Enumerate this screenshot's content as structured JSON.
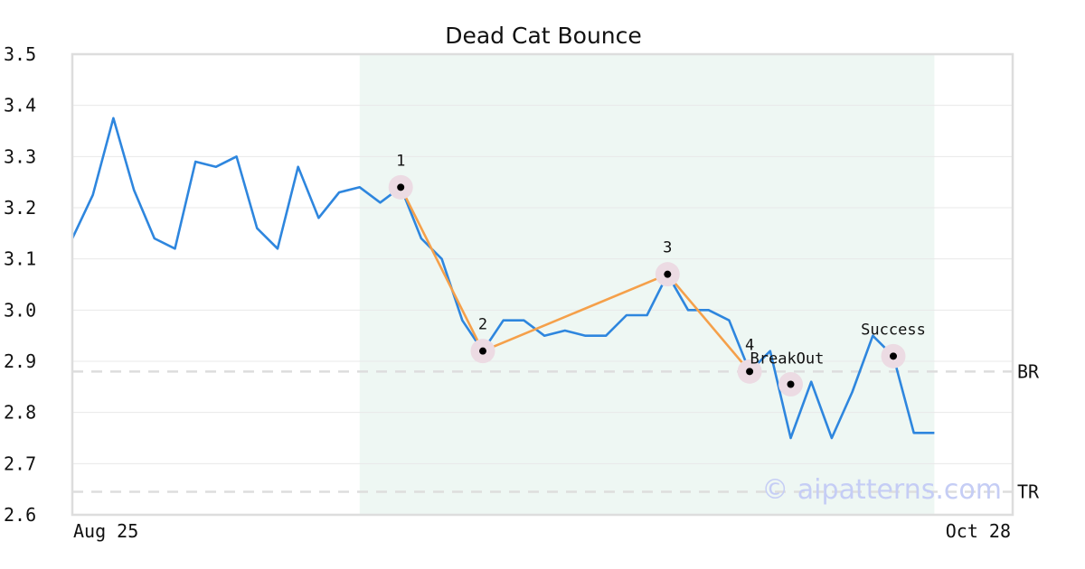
{
  "chart_data": {
    "type": "line",
    "title": "Dead Cat Bounce",
    "ylim": [
      2.6,
      3.5
    ],
    "yticks": [
      "3.5",
      "3.4",
      "3.3",
      "3.2",
      "3.1",
      "3.0",
      "2.9",
      "2.8",
      "2.7",
      "2.6"
    ],
    "xtick_labels": [
      "Aug 25",
      "Oct 28"
    ],
    "grid": true,
    "series": [
      {
        "values": [
          3.14,
          3.225,
          3.375,
          3.235,
          3.14,
          3.12,
          3.29,
          3.28,
          3.3,
          3.16,
          3.12,
          3.28,
          3.18,
          3.23,
          3.24,
          3.21,
          3.24,
          3.14,
          3.1,
          2.98,
          2.92,
          2.98,
          2.98,
          2.95,
          2.96,
          2.95,
          2.95,
          2.99,
          2.99,
          3.07,
          3.0,
          3.0,
          2.98,
          2.88,
          2.92,
          2.75,
          2.86,
          2.75,
          2.84,
          2.95,
          2.91,
          2.76,
          2.76
        ]
      }
    ],
    "pattern_shading": {
      "from_index": 14,
      "to_index": 42
    },
    "pattern_points": [
      {
        "label": "1",
        "index": 16,
        "value": 3.24
      },
      {
        "label": "2",
        "index": 20,
        "value": 2.92
      },
      {
        "label": "3",
        "index": 29,
        "value": 3.07
      },
      {
        "label": "4",
        "index": 33,
        "value": 2.88
      }
    ],
    "event_points": [
      {
        "label": "BreakOut",
        "index": 35,
        "value": 2.855
      },
      {
        "label": "Success",
        "index": 40,
        "value": 2.91
      }
    ],
    "levels": [
      {
        "label": "BR",
        "value": 2.88
      },
      {
        "label": "TR",
        "value": 2.645
      }
    ],
    "watermark": "© aipatterns.com",
    "colors": {
      "price_line": "#2e86de",
      "pattern_line": "#f5a04a",
      "shading": "#eef7f3",
      "marker_halo": "#ecdbe3",
      "level_line": "#dddddd",
      "grid": "#e8e8e8",
      "frame": "#dddddd",
      "watermark": "#c5cdf5"
    }
  }
}
